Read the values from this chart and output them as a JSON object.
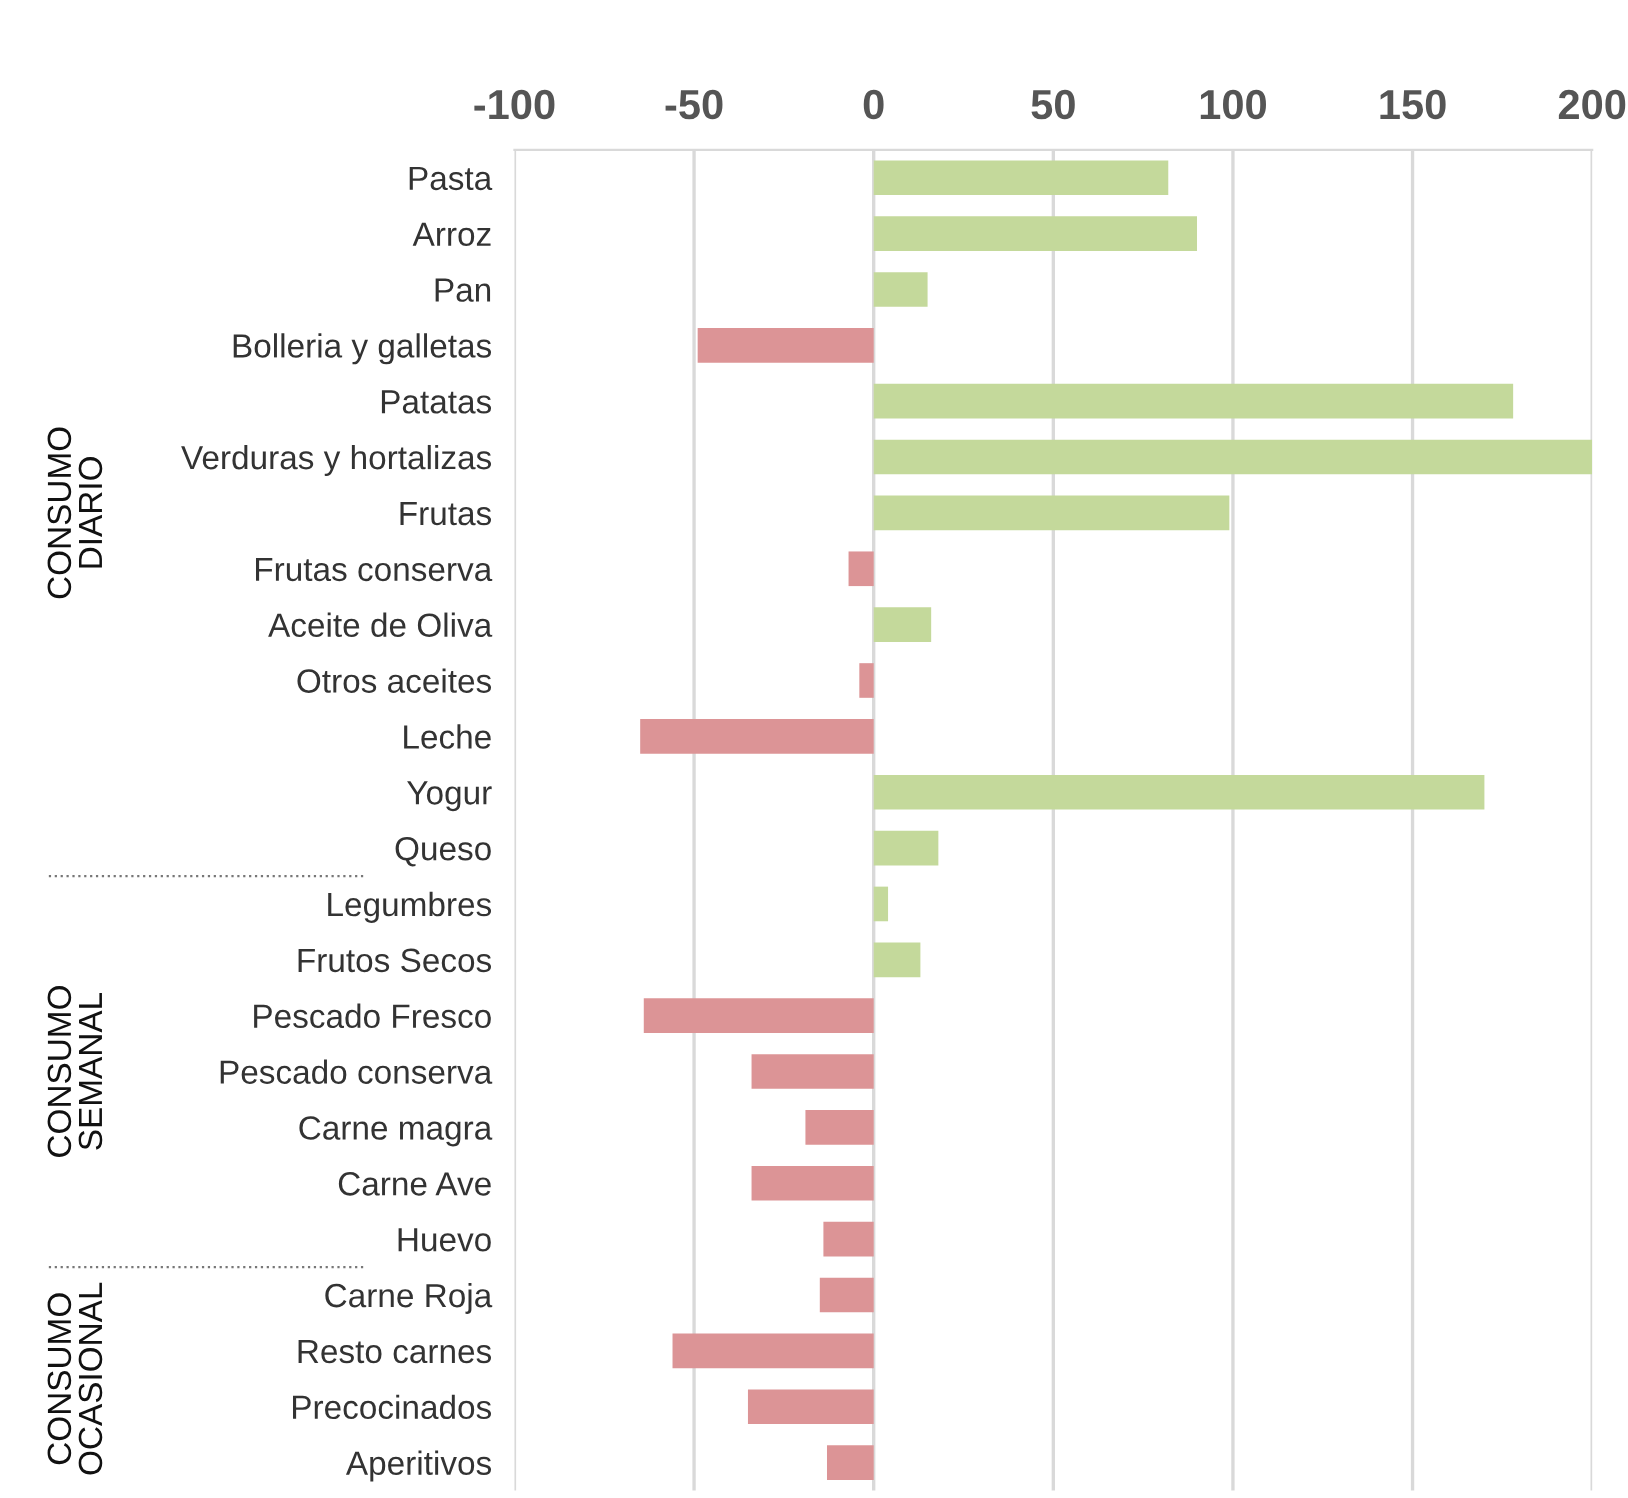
{
  "chart_data": {
    "type": "bar",
    "orientation": "horizontal",
    "categories": [
      "Pasta",
      "Arroz",
      "Pan",
      "Bolleria y galletas",
      "Patatas",
      "Verduras y hortalizas",
      "Frutas",
      "Frutas conserva",
      "Aceite de Oliva",
      "Otros aceites",
      "Leche",
      "Yogur",
      "Queso",
      "Legumbres",
      "Frutos Secos",
      "Pescado Fresco",
      "Pescado conserva",
      "Carne magra",
      "Carne Ave",
      "Huevo",
      "Carne Roja",
      "Resto carnes",
      "Precocinados",
      "Aperitivos"
    ],
    "values": [
      82,
      90,
      15,
      -49,
      178,
      200,
      99,
      -7,
      16,
      -4,
      -65,
      170,
      18,
      4,
      13,
      -64,
      -34,
      -19,
      -34,
      -14,
      -15,
      -56,
      -35,
      -13
    ],
    "colors": [
      "#c4d99b",
      "#c4d99b",
      "#c4d99b",
      "#dc9496",
      "#c4d99b",
      "#c4d99b",
      "#c4d99b",
      "#dc9496",
      "#c4d99b",
      "#dc9496",
      "#dc9496",
      "#c4d99b",
      "#c4d99b",
      "#c4d99b",
      "#c4d99b",
      "#dc9496",
      "#dc9496",
      "#dc9496",
      "#dc9496",
      "#dc9496",
      "#dc9496",
      "#dc9496",
      "#dc9496",
      "#dc9496"
    ],
    "xlim": [
      -100,
      200
    ],
    "xticks": [
      -100,
      -50,
      0,
      50,
      100,
      150,
      200
    ],
    "grid": "x",
    "annotations": [
      "CONSUMO\nDIARIO",
      "CONSUMO\nSEMANAL",
      "CONSUMO\nOCASIONAL"
    ]
  }
}
